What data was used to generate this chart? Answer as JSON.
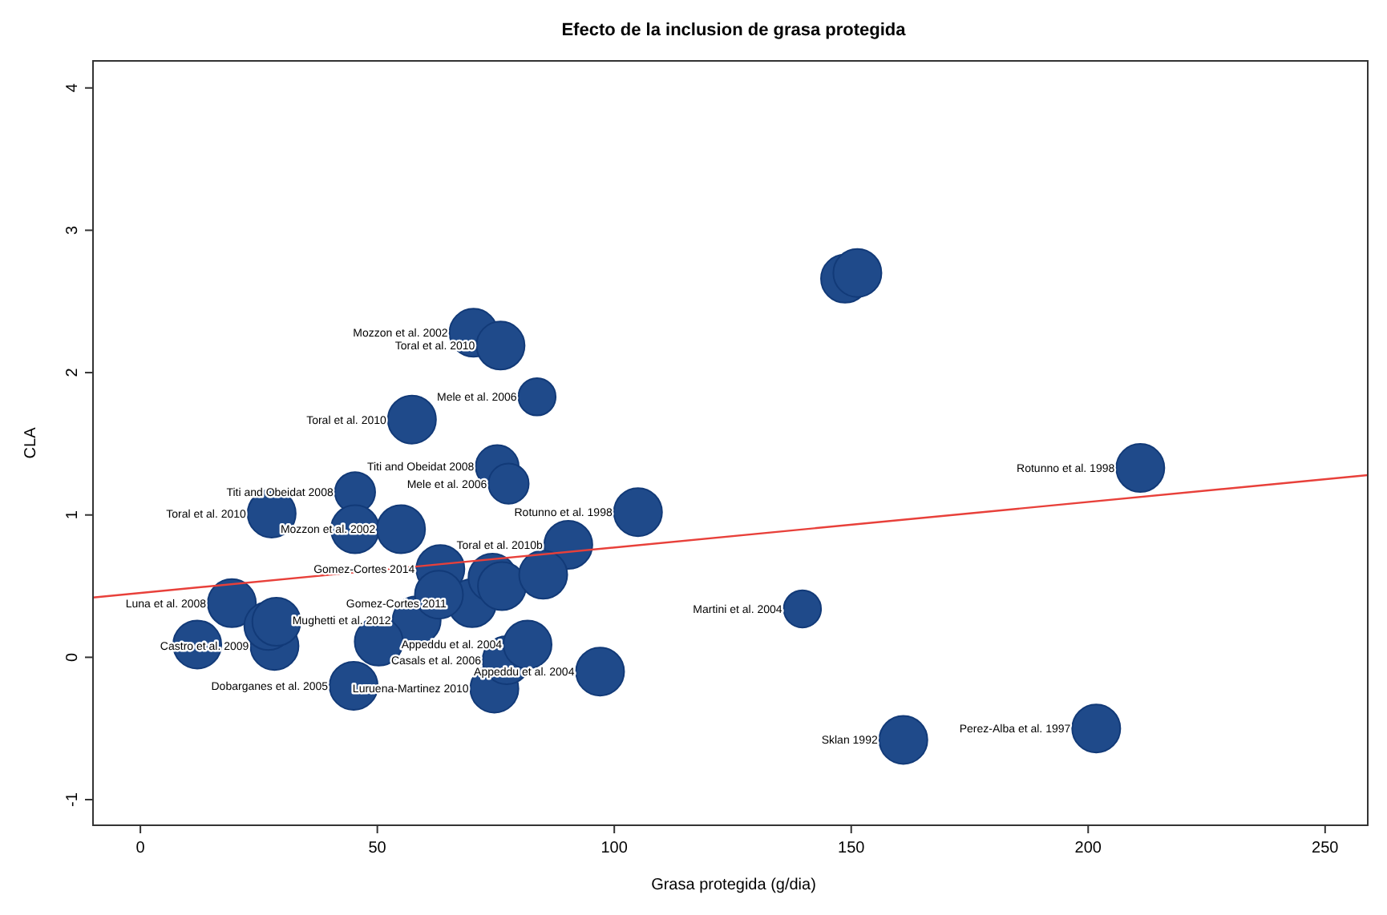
{
  "chart_data": {
    "type": "bubble",
    "title": "Efecto de la inclusion de grasa protegida",
    "xlabel": "Grasa protegida (g/dia)",
    "ylabel": "CLA",
    "xlim": [
      -10,
      259
    ],
    "ylim": [
      -1.18,
      4.19
    ],
    "xticks": [
      0,
      50,
      100,
      150,
      200,
      250
    ],
    "yticks": [
      -1,
      0,
      1,
      2,
      3,
      4
    ],
    "grid": false,
    "series": [
      {
        "color": "#1f4a8a",
        "x": [
          12,
          28.3,
          19.3,
          27,
          28.7,
          58.3,
          50.3,
          45,
          74.7,
          77.3,
          97,
          81.7,
          90.3,
          105,
          211,
          139.7,
          161,
          201.7,
          148.7,
          151.3,
          70.3,
          76,
          83.7,
          57.3,
          75.3,
          77.7,
          45.3,
          27.7,
          45.3,
          55,
          63.3,
          70,
          63,
          74.3,
          76.3,
          85
        ],
        "values": [
          0.09,
          0.08,
          0.38,
          0.22,
          0.25,
          0.26,
          0.11,
          -0.2,
          -0.22,
          -0.02,
          -0.1,
          0.09,
          0.79,
          1.02,
          1.33,
          0.34,
          -0.58,
          -0.5,
          2.66,
          2.7,
          2.28,
          2.19,
          1.83,
          1.67,
          1.34,
          1.22,
          1.16,
          1.01,
          0.9,
          0.9,
          0.62,
          0.38,
          0.44,
          0.56,
          0.5,
          0.58
        ],
        "sizes": [
          1,
          1,
          1,
          1,
          1,
          1,
          1,
          1,
          1,
          1,
          1,
          1,
          1,
          1,
          1,
          0.6,
          1,
          1,
          1,
          1,
          1,
          1,
          0.6,
          1,
          0.8,
          0.7,
          0.7,
          1,
          1,
          1,
          1,
          1,
          1,
          1,
          1,
          1
        ]
      },
      {
        "type": "line",
        "color": "#e8403a",
        "x": [
          -10,
          259
        ],
        "values": [
          0.42,
          1.28
        ]
      }
    ],
    "annotations": [
      {
        "text": "Luna et al. 2008",
        "x": 19.3,
        "y": 0.38
      },
      {
        "text": "Castro et al. 2009",
        "x": 28.3,
        "y": 0.08
      },
      {
        "text": "Mughetti et al. 2012",
        "x": 58.3,
        "y": 0.26
      },
      {
        "text": "Dobarganes et al. 2005",
        "x": 45,
        "y": -0.2
      },
      {
        "text": "Luruena-Martinez 2010",
        "x": 74.7,
        "y": -0.22
      },
      {
        "text": "Casals et al. 2006",
        "x": 77.3,
        "y": -0.02
      },
      {
        "text": "Appeddu et al. 2004",
        "x": 97,
        "y": -0.1
      },
      {
        "text": "Appeddu et al. 2004",
        "x": 81.7,
        "y": 0.09
      },
      {
        "text": "Toral et al. 2010b",
        "x": 90.3,
        "y": 0.79
      },
      {
        "text": "Rotunno et al. 1998",
        "x": 105,
        "y": 1.02
      },
      {
        "text": "Rotunno et al. 1998",
        "x": 211,
        "y": 1.33
      },
      {
        "text": "Martini et al. 2004",
        "x": 139.7,
        "y": 0.34
      },
      {
        "text": "Sklan 1992",
        "x": 161,
        "y": -0.58
      },
      {
        "text": "Perez-Alba et al. 1997",
        "x": 201.7,
        "y": -0.5
      },
      {
        "text": "Mozzon et al. 2002",
        "x": 70.3,
        "y": 2.28
      },
      {
        "text": "Toral et al. 2010",
        "x": 76,
        "y": 2.19
      },
      {
        "text": "Mele et al. 2006",
        "x": 83.7,
        "y": 1.83
      },
      {
        "text": "Toral et al. 2010",
        "x": 57.3,
        "y": 1.67
      },
      {
        "text": "Titi and Obeidat 2008",
        "x": 75.3,
        "y": 1.34
      },
      {
        "text": "Mele et al. 2006",
        "x": 77.7,
        "y": 1.22
      },
      {
        "text": "Titi and Obeidat 2008",
        "x": 45.3,
        "y": 1.16
      },
      {
        "text": "Toral et al. 2010",
        "x": 27.7,
        "y": 1.01
      },
      {
        "text": "Mozzon et al. 2002",
        "x": 55,
        "y": 0.9
      },
      {
        "text": "Gomez-Cortes 2014",
        "x": 63.3,
        "y": 0.62
      },
      {
        "text": "Gomez-Cortes 2011",
        "x": 70,
        "y": 0.38
      }
    ]
  }
}
